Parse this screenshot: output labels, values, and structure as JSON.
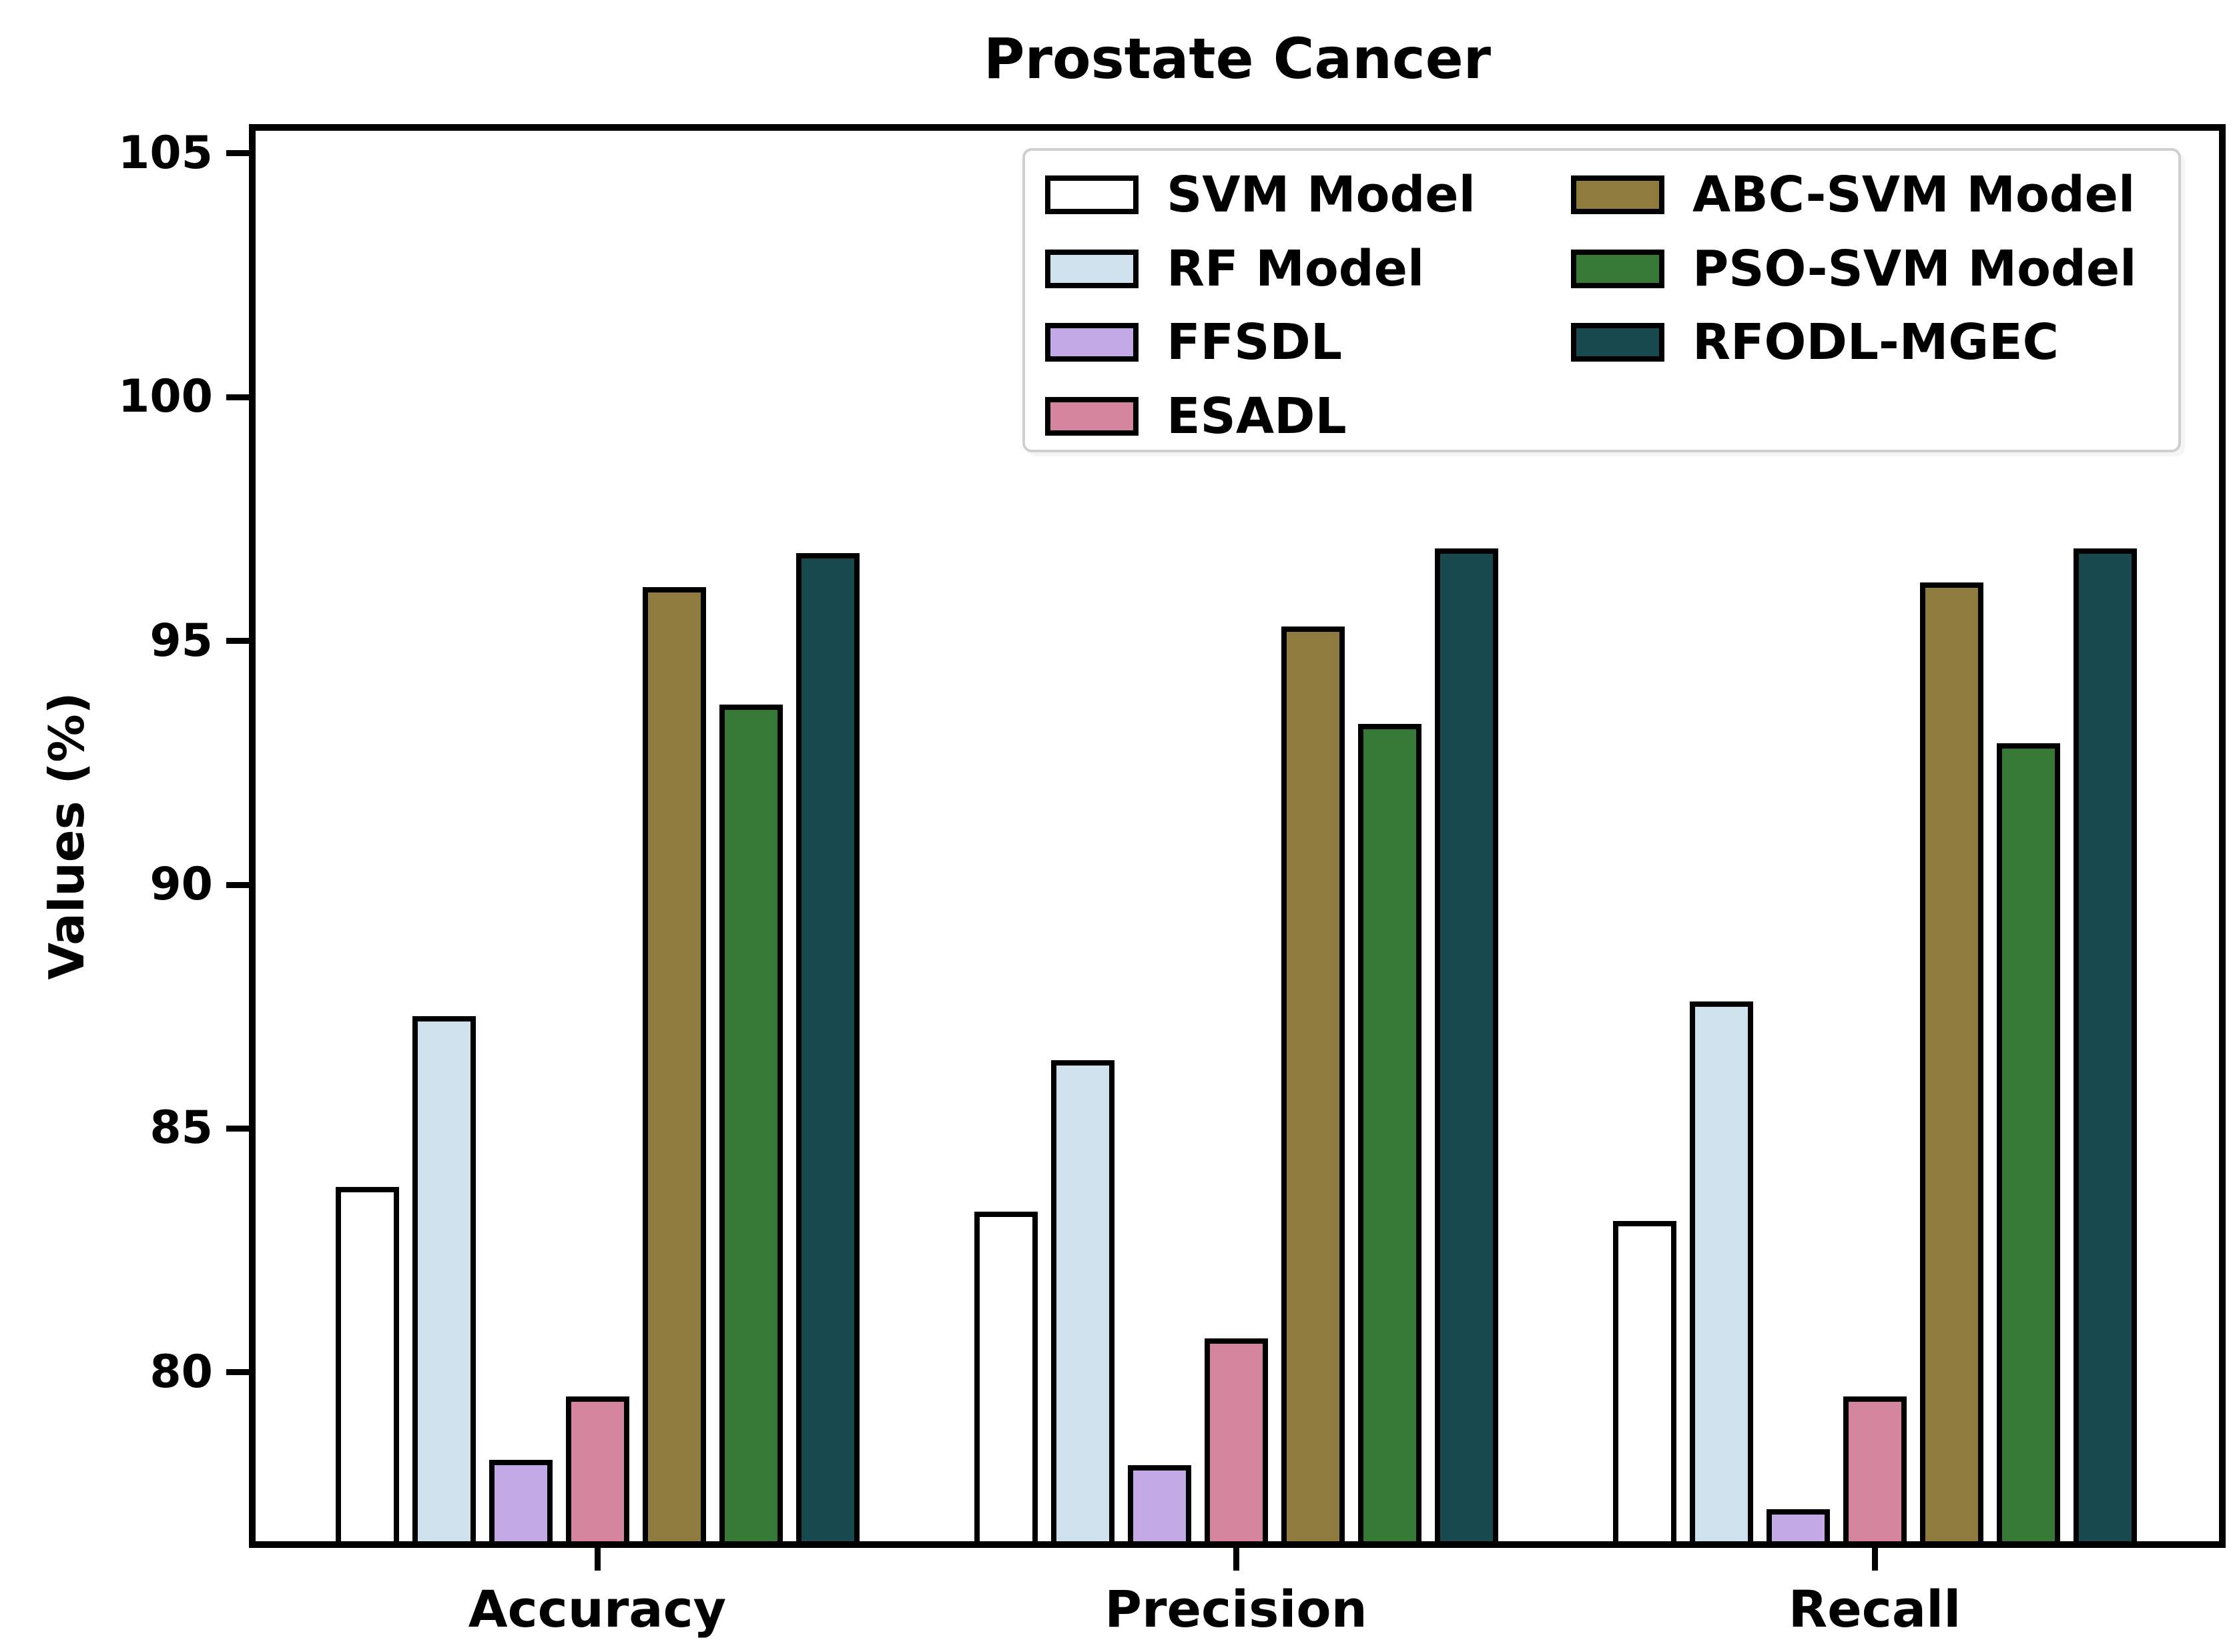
{
  "chart_data": {
    "type": "bar",
    "title": "Prostate Cancer",
    "ylabel": "Values (%)",
    "xlabel": "",
    "categories": [
      "Accuracy",
      "Precision",
      "Recall"
    ],
    "series": [
      {
        "name": "SVM Model",
        "color": "#ffffff",
        "values": [
          83.8,
          83.3,
          83.1
        ]
      },
      {
        "name": "RF Model",
        "color": "#cde2ec",
        "values": [
          87.3,
          86.4,
          87.6
        ]
      },
      {
        "name": "FFSDL",
        "color": "#c3aae7",
        "values": [
          78.2,
          78.1,
          77.2
        ]
      },
      {
        "name": "ESADL",
        "color": "#d5849e",
        "values": [
          79.5,
          80.7,
          79.5
        ]
      },
      {
        "name": "ABC-SVM Model",
        "color": "#8f7b3e",
        "values": [
          96.1,
          95.3,
          96.2
        ]
      },
      {
        "name": "PSO-SVM Model",
        "color": "#367936",
        "values": [
          93.7,
          93.3,
          92.9
        ]
      },
      {
        "name": "RFODL-MGEC",
        "color": "#17494f",
        "values": [
          96.8,
          96.9,
          96.9
        ]
      }
    ],
    "yticks": [
      80,
      85,
      90,
      95,
      100,
      105
    ],
    "ylim": [
      76.4,
      105.6
    ],
    "grid": false,
    "bar_edge_color": "#000000",
    "legend": {
      "position": "upper right inside plot",
      "columns": 2,
      "column_split": [
        4,
        3
      ],
      "border_color": "#cfcfcf"
    }
  }
}
